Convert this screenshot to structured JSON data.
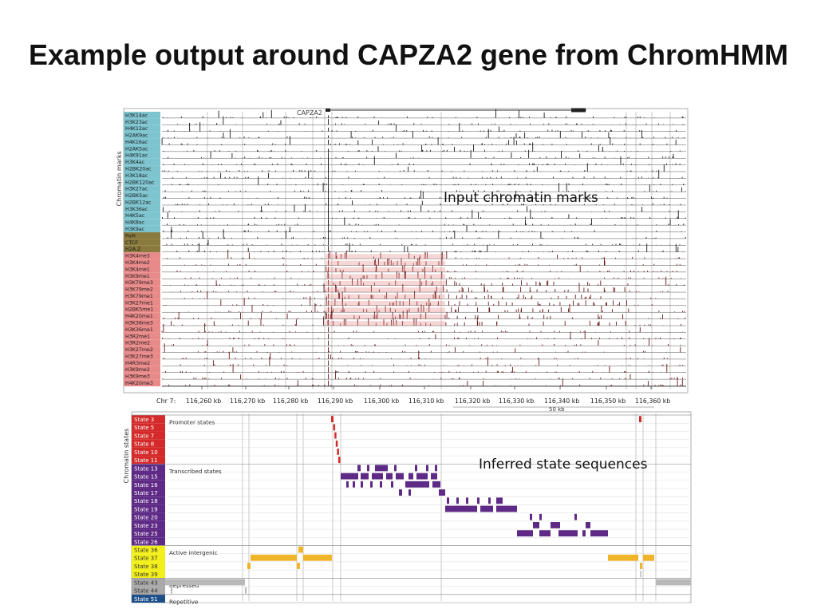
{
  "slide": {
    "title": "Example output around CAPZA2 gene from ChromHMM",
    "callout_top": "Input chromatin marks",
    "callout_bottom": "Inferred state sequences"
  },
  "colors": {
    "acetyl": "#7ec4cf",
    "other": "#8a7a3e",
    "methyl": "#e98a8a",
    "state_promoter": "#d42a2a",
    "state_transcribed": "#5e2a86",
    "state_intergenic": "#f2ef1a",
    "state_repressed": "#a9a9a9",
    "state_repetitive": "#1d4f8a",
    "bar_orange": "#f0b429",
    "bar_gray": "#b8b8b8"
  },
  "top_panel": {
    "y_label": "Chromatin marks",
    "gene_label": "CAPZA2",
    "chr_label": "Chr 7:",
    "scale_label": "50 kb",
    "axis_ticks": [
      "116,260 kb",
      "116,270 kb",
      "116,280 kb",
      "116,290 kb",
      "116,300 kb",
      "116,310 kb",
      "116,320 kb",
      "116,330 kb",
      "116,340 kb",
      "116,350 kb",
      "116,360 kb"
    ],
    "tracks": [
      {
        "name": "H3K14ac",
        "group": "acetyl"
      },
      {
        "name": "H3K23ac",
        "group": "acetyl"
      },
      {
        "name": "H4K12ac",
        "group": "acetyl"
      },
      {
        "name": "H2AK9ac",
        "group": "acetyl"
      },
      {
        "name": "H4K16ac",
        "group": "acetyl"
      },
      {
        "name": "H2AK5ac",
        "group": "acetyl"
      },
      {
        "name": "H4K91ac",
        "group": "acetyl"
      },
      {
        "name": "H3K4ac",
        "group": "acetyl"
      },
      {
        "name": "H2BK20ac",
        "group": "acetyl"
      },
      {
        "name": "H3K18ac",
        "group": "acetyl"
      },
      {
        "name": "H2BK120ac",
        "group": "acetyl"
      },
      {
        "name": "H3K27ac",
        "group": "acetyl"
      },
      {
        "name": "H2BK5ac",
        "group": "acetyl"
      },
      {
        "name": "H2BK12ac",
        "group": "acetyl"
      },
      {
        "name": "H3K36ac",
        "group": "acetyl"
      },
      {
        "name": "H4K5ac",
        "group": "acetyl"
      },
      {
        "name": "H4K8ac",
        "group": "acetyl"
      },
      {
        "name": "H3K9ac",
        "group": "acetyl"
      },
      {
        "name": "PolII",
        "group": "other"
      },
      {
        "name": "CTCF",
        "group": "other"
      },
      {
        "name": "H2A.Z",
        "group": "other"
      },
      {
        "name": "H3K4me3",
        "group": "methyl"
      },
      {
        "name": "H3K4me2",
        "group": "methyl"
      },
      {
        "name": "H3K4me1",
        "group": "methyl"
      },
      {
        "name": "H3K9me1",
        "group": "methyl"
      },
      {
        "name": "H3K79me3",
        "group": "methyl"
      },
      {
        "name": "H3K79me2",
        "group": "methyl"
      },
      {
        "name": "H3K79me1",
        "group": "methyl"
      },
      {
        "name": "H3K27me1",
        "group": "methyl"
      },
      {
        "name": "H2BK5me1",
        "group": "methyl"
      },
      {
        "name": "H4K20me1",
        "group": "methyl"
      },
      {
        "name": "H3K36me3",
        "group": "methyl"
      },
      {
        "name": "H3K36me1",
        "group": "methyl"
      },
      {
        "name": "H3R2me1",
        "group": "methyl"
      },
      {
        "name": "H3R2me2",
        "group": "methyl"
      },
      {
        "name": "H3K27me2",
        "group": "methyl"
      },
      {
        "name": "H3K27me3",
        "group": "methyl"
      },
      {
        "name": "H4R3me2",
        "group": "methyl"
      },
      {
        "name": "H3K9me2",
        "group": "methyl"
      },
      {
        "name": "H3K9me3",
        "group": "methyl"
      },
      {
        "name": "H4K20me3",
        "group": "methyl"
      }
    ]
  },
  "bottom_panel": {
    "y_label": "Chromatin states",
    "groups": [
      {
        "label": "Promoter states",
        "first": 0
      },
      {
        "label": "Transcribed states",
        "first": 6
      },
      {
        "label": "Active intergenic",
        "first": 16
      },
      {
        "label": "Repressed",
        "first": 20
      },
      {
        "label": "Repetitive",
        "first": 22
      }
    ],
    "states": [
      {
        "name": "State 3",
        "cat": "promoter"
      },
      {
        "name": "State 5",
        "cat": "promoter"
      },
      {
        "name": "State 7",
        "cat": "promoter"
      },
      {
        "name": "State 8",
        "cat": "promoter"
      },
      {
        "name": "State 10",
        "cat": "promoter"
      },
      {
        "name": "State 11",
        "cat": "promoter"
      },
      {
        "name": "State 13",
        "cat": "transcribed"
      },
      {
        "name": "State 15",
        "cat": "transcribed"
      },
      {
        "name": "State 16",
        "cat": "transcribed"
      },
      {
        "name": "State 17",
        "cat": "transcribed"
      },
      {
        "name": "State 18",
        "cat": "transcribed"
      },
      {
        "name": "State 19",
        "cat": "transcribed"
      },
      {
        "name": "State 20",
        "cat": "transcribed"
      },
      {
        "name": "State 23",
        "cat": "transcribed"
      },
      {
        "name": "State 25",
        "cat": "transcribed"
      },
      {
        "name": "State 26",
        "cat": "transcribed"
      },
      {
        "name": "State 36",
        "cat": "intergenic"
      },
      {
        "name": "State 37",
        "cat": "intergenic"
      },
      {
        "name": "State 38",
        "cat": "intergenic"
      },
      {
        "name": "State 39",
        "cat": "intergenic"
      },
      {
        "name": "State 43",
        "cat": "repressed"
      },
      {
        "name": "State 44",
        "cat": "repressed"
      },
      {
        "name": "State 51",
        "cat": "repetitive"
      }
    ]
  }
}
